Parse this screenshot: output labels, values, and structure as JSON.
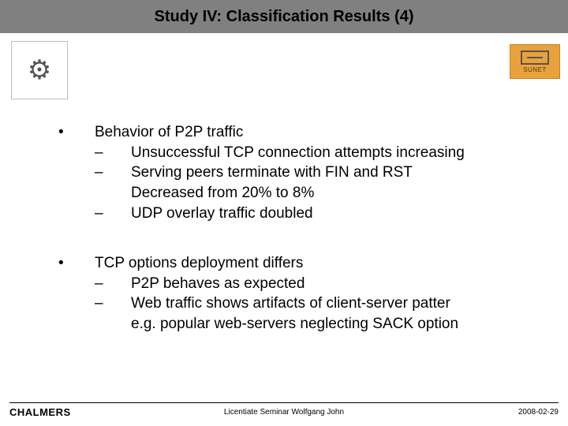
{
  "title": "Study IV: Classification Results (4)",
  "logos": {
    "left_alt": "university-crest",
    "right_label": "SUNET"
  },
  "bullets": [
    {
      "text": "Behavior of P2P traffic",
      "subs": [
        "Unsuccessful TCP connection attempts increasing",
        "Serving peers terminate with FIN and RST\nDecreased from 20% to 8%",
        "UDP overlay traffic doubled"
      ]
    },
    {
      "text": "TCP options deployment differs",
      "subs": [
        "P2P behaves as expected",
        "Web traffic shows artifacts of client-server patter\ne.g. popular web-servers neglecting SACK option"
      ]
    }
  ],
  "footer": {
    "left": "CHALMERS",
    "center": "Licentiate Seminar Wolfgang John",
    "right": "2008-02-29"
  }
}
